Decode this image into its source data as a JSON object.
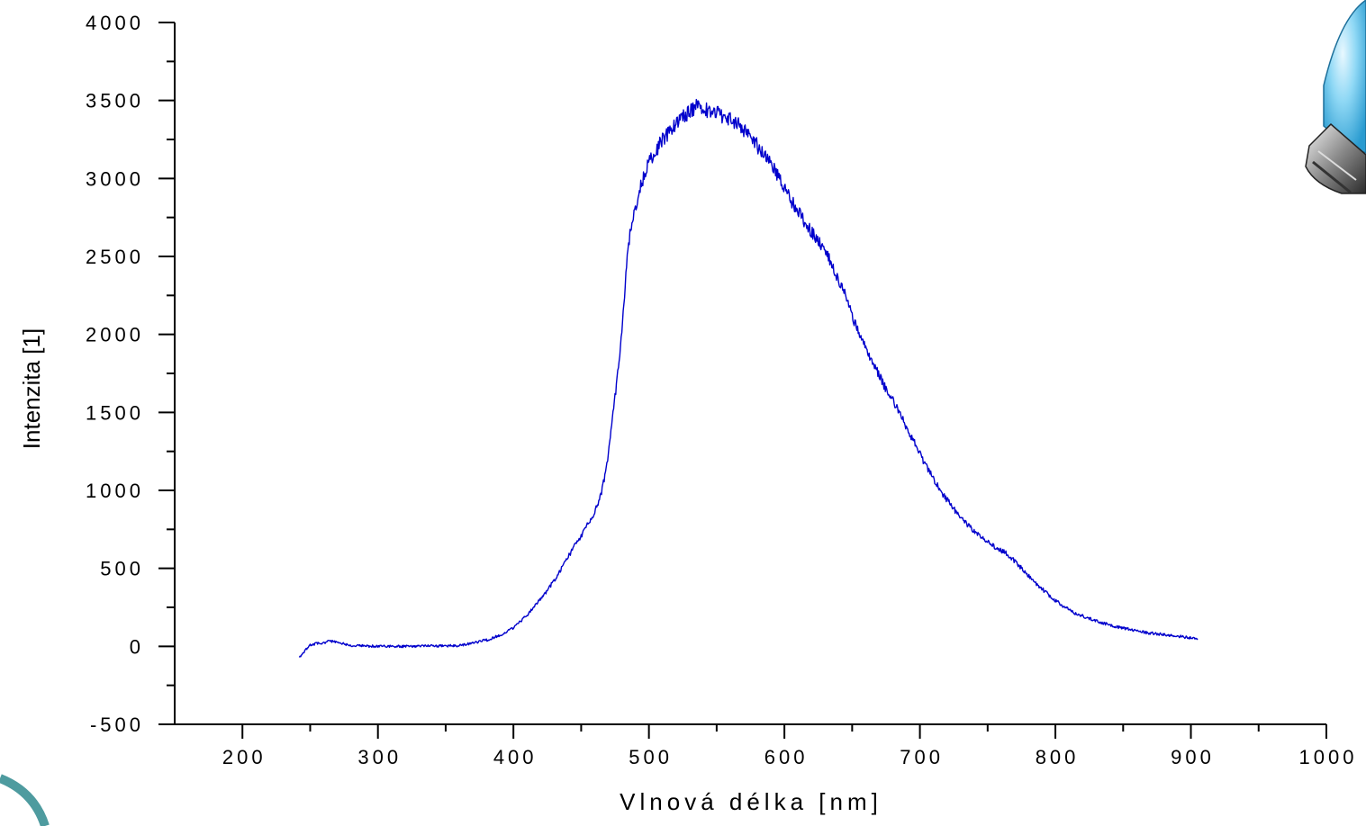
{
  "chart_data": {
    "type": "line",
    "title": "",
    "xlabel": "Vlnová délka [nm]",
    "ylabel": "Intenzita [1]",
    "xlim": [
      150,
      1000
    ],
    "ylim": [
      -500,
      4000
    ],
    "x_ticks": [
      200,
      300,
      400,
      500,
      600,
      700,
      800,
      900,
      1000
    ],
    "y_ticks": [
      -500,
      0,
      500,
      1000,
      1500,
      2000,
      2500,
      3000,
      3500,
      4000
    ],
    "x_tick_labels": [
      "200",
      "300",
      "400",
      "500",
      "600",
      "700",
      "800",
      "900",
      "1000"
    ],
    "y_tick_labels": [
      "-500",
      "0",
      "500",
      "1000",
      "1500",
      "2000",
      "2500",
      "3000",
      "3500",
      "4000"
    ],
    "grid": false,
    "legend": "none",
    "series": [
      {
        "color": "#0000cc",
        "x": [
          242,
          250,
          267,
          280,
          300,
          320,
          340,
          360,
          370,
          380,
          390,
          400,
          410,
          420,
          430,
          440,
          450,
          460,
          465,
          470,
          475,
          480,
          483,
          486,
          490,
          494,
          500,
          510,
          520,
          530,
          537,
          545,
          555,
          565,
          575,
          585,
          595,
          605,
          615,
          625,
          635,
          645,
          655,
          665,
          675,
          685,
          695,
          705,
          715,
          725,
          735,
          745,
          755,
          765,
          775,
          785,
          795,
          805,
          815,
          825,
          835,
          845,
          855,
          865,
          875,
          885,
          895,
          905
        ],
        "y": [
          -70,
          10,
          35,
          5,
          0,
          0,
          2,
          5,
          20,
          40,
          70,
          120,
          200,
          300,
          420,
          570,
          710,
          860,
          980,
          1220,
          1600,
          2000,
          2400,
          2650,
          2800,
          2950,
          3100,
          3250,
          3350,
          3430,
          3470,
          3430,
          3400,
          3350,
          3270,
          3150,
          3020,
          2860,
          2720,
          2600,
          2450,
          2250,
          2000,
          1820,
          1650,
          1500,
          1320,
          1150,
          1000,
          880,
          780,
          700,
          640,
          590,
          500,
          410,
          330,
          260,
          210,
          180,
          150,
          125,
          110,
          90,
          80,
          70,
          60,
          50
        ]
      }
    ]
  }
}
